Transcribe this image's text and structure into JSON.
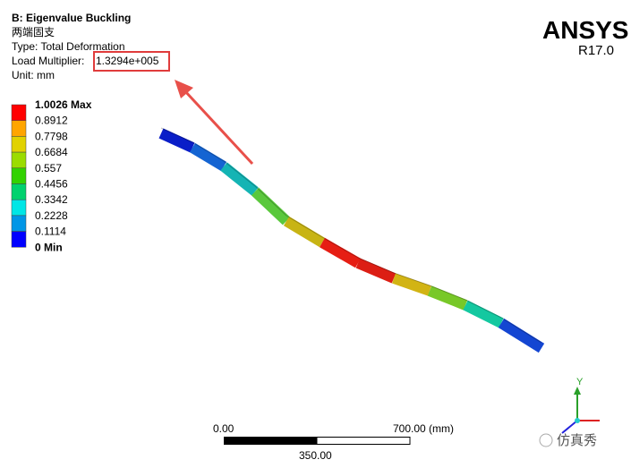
{
  "header": {
    "title": "B: Eigenvalue Buckling",
    "subtitle": "两端固支",
    "type": "Type: Total Deformation",
    "load_label": "Load Multiplier:",
    "load_value": "1.3294e+005",
    "unit": "Unit: mm"
  },
  "legend": [
    {
      "label": "1.0026 Max",
      "color": "#ff0000"
    },
    {
      "label": "0.8912",
      "color": "#ffa500"
    },
    {
      "label": "0.7798",
      "color": "#e1d200"
    },
    {
      "label": "0.6684",
      "color": "#9bdc00"
    },
    {
      "label": "0.557",
      "color": "#32d200"
    },
    {
      "label": "0.4456",
      "color": "#00d26e"
    },
    {
      "label": "0.3342",
      "color": "#00e6e6"
    },
    {
      "label": "0.2228",
      "color": "#0096e6"
    },
    {
      "label": "0.1114",
      "color": "#0000ff"
    },
    {
      "label": "0 Min"
    }
  ],
  "logo": {
    "name": "ANSYS",
    "version": "R17.0"
  },
  "scale": {
    "start": "0.00",
    "end": "700.00 (mm)",
    "mid": "350.00"
  },
  "triad": {
    "axis": "Y"
  },
  "watermark": "仿真秀"
}
